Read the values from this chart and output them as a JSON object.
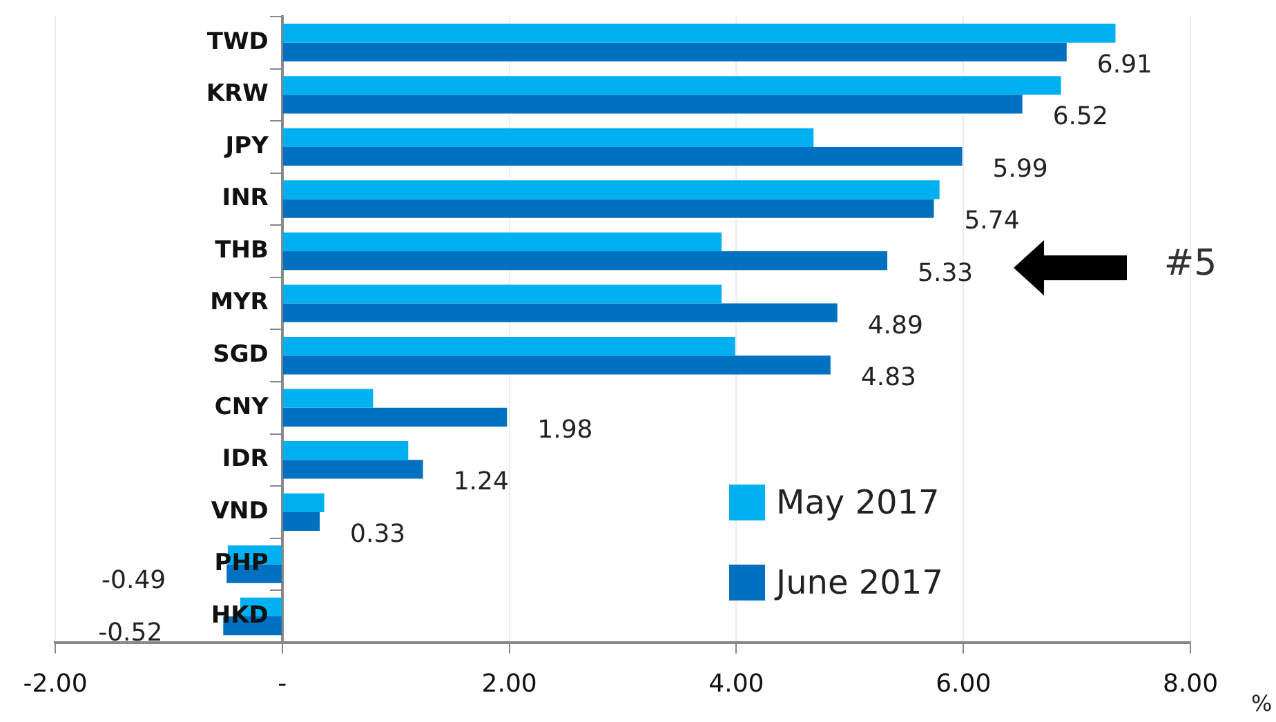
{
  "chart_data": {
    "type": "bar",
    "orientation": "horizontal",
    "xlabel": "%",
    "categories": [
      "TWD",
      "KRW",
      "JPY",
      "INR",
      "THB",
      "MYR",
      "SGD",
      "CNY",
      "IDR",
      "VND",
      "PHP",
      "HKD"
    ],
    "series": [
      {
        "name": "May 2017",
        "color": "#00b0f0",
        "values": [
          7.34,
          6.86,
          4.68,
          5.79,
          3.87,
          3.87,
          3.99,
          0.8,
          1.11,
          0.37,
          -0.48,
          -0.37
        ]
      },
      {
        "name": "June 2017",
        "color": "#0070c0",
        "values": [
          6.91,
          6.52,
          5.99,
          5.74,
          5.33,
          4.89,
          4.83,
          1.98,
          1.24,
          0.33,
          -0.49,
          -0.52
        ],
        "value_labels": [
          "6.91",
          "6.52",
          "5.99",
          "5.74",
          "5.33",
          "4.89",
          "4.83",
          "1.98",
          "1.24",
          "0.33",
          "-0.49",
          "-0.52"
        ]
      }
    ],
    "xlim": [
      -2,
      8
    ],
    "xticks": [
      {
        "value": -2,
        "label": "-2.00"
      },
      {
        "value": 0,
        "label": "-"
      },
      {
        "value": 2,
        "label": "2.00"
      },
      {
        "value": 4,
        "label": "4.00"
      },
      {
        "value": 6,
        "label": "6.00"
      },
      {
        "value": 8,
        "label": "8.00"
      }
    ],
    "grid": "x",
    "legend": "bottom right",
    "annotations": [
      "#5"
    ]
  }
}
